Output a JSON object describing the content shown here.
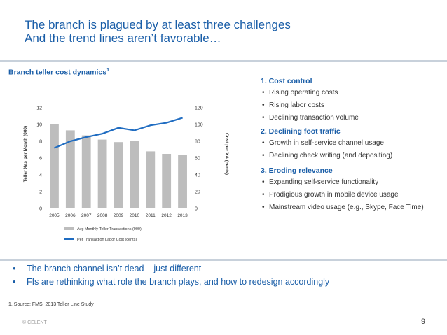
{
  "slide": {
    "title_line1": "The branch is plagued by at least three challenges",
    "title_line2": "And the trend lines aren’t favorable…",
    "chart_title": "Branch teller cost dynamics",
    "chart_title_sup": "1",
    "challenges": [
      {
        "heading": "1. Cost control",
        "bullets": [
          "Rising operating costs",
          "Rising labor costs",
          "Declining transaction volume"
        ]
      },
      {
        "heading": "2. Declining foot traffic",
        "bullets": [
          "Growth in self-service channel usage",
          "Declining check writing (and depositing)"
        ]
      },
      {
        "heading": "3. Eroding relevance",
        "bullets": [
          "Expanding self-service functionality",
          "Prodigious growth in mobile device usage",
          "Mainstream video usage (e.g., Skype, Face Time)"
        ]
      }
    ],
    "conclusions": [
      "The branch channel isn’t dead –  just different",
      "FIs are rethinking what role the branch plays, and how to redesign accordingly"
    ],
    "bullet_glyph": "•",
    "source": "1. Source: FMSI 2013 Teller Line Study",
    "copyright": "© CELENT",
    "page_number": "9"
  },
  "colors": {
    "accent": "#1a5ea8",
    "bar": "#bdbdbd",
    "line": "#1f6cc1"
  },
  "chart_data": {
    "type": "bar",
    "categories": [
      "2005",
      "2006",
      "2007",
      "2008",
      "2009",
      "2010",
      "2011",
      "2012",
      "2013"
    ],
    "series": [
      {
        "name": "Avg Monthly Teller Transactions (000)",
        "type": "bar",
        "axis": "left",
        "values": [
          10.0,
          9.3,
          8.7,
          8.2,
          7.9,
          8.0,
          6.8,
          6.5,
          6.4
        ]
      },
      {
        "name": "Per Transaction Labor Cost (cents)",
        "type": "line",
        "axis": "right",
        "values": [
          72,
          80,
          85,
          89,
          96,
          93,
          99,
          102,
          108
        ]
      }
    ],
    "ylabel_left": "Teller Xas per Month (000)",
    "ylabel_right": "Cost per XA (cents)",
    "ylim_left": [
      0,
      12
    ],
    "ylim_right": [
      0,
      120
    ],
    "yticks_left": [
      "0",
      "2",
      "4",
      "6",
      "8",
      "10",
      "12"
    ],
    "yticks_right": [
      "0",
      "20",
      "40",
      "60",
      "80",
      "100",
      "120"
    ],
    "grid": false,
    "legend_position": "bottom"
  }
}
